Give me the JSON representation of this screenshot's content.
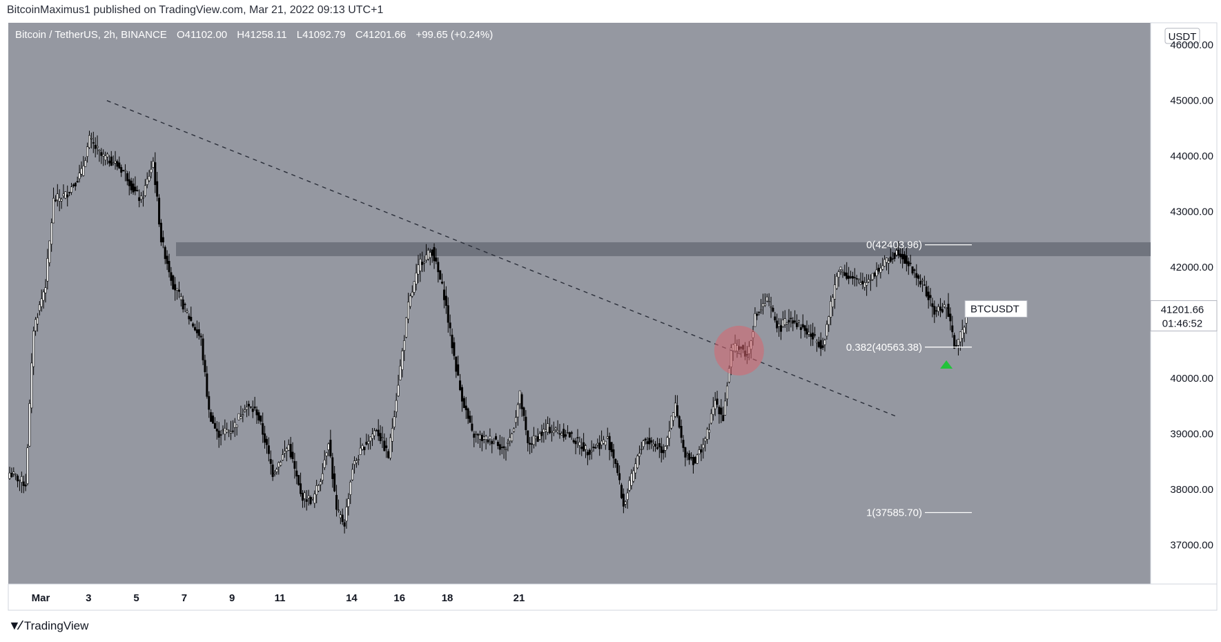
{
  "header": {
    "publisher_line": "BitcoinMaximus1 published on TradingView.com, Mar 21, 2022 09:13 UTC+1"
  },
  "legend": {
    "symbol": "Bitcoin / TetherUS, 2h, BINANCE",
    "o_label": "O",
    "o": "41102.00",
    "h_label": "H",
    "h": "41258.11",
    "l_label": "L",
    "l": "41092.79",
    "c_label": "C",
    "c": "41201.66",
    "change": "+99.65 (+0.24%)"
  },
  "price_axis": {
    "currency": "USDT",
    "ticks": [
      "46000.00",
      "45000.00",
      "44000.00",
      "43000.00",
      "42000.00",
      "41000.00",
      "40000.00",
      "39000.00",
      "38000.00",
      "37000.00"
    ]
  },
  "price_label": {
    "ticker": "BTCUSDT",
    "price": "41201.66",
    "countdown": "01:46:52"
  },
  "date_axis": {
    "ticks": [
      "Mar",
      "3",
      "5",
      "7",
      "9",
      "11",
      "14",
      "16",
      "18",
      "21"
    ]
  },
  "fib": {
    "level_0": "0(42403.96)",
    "level_0382": "0.382(40563.38)",
    "level_1": "1(37585.70)"
  },
  "footer": {
    "brand": "TradingView",
    "logo": "tradingview-logo-icon"
  },
  "colors": {
    "plot_bg": "#9598a1",
    "up": "#ffffff",
    "down": "#000000",
    "zone": "#6a6d78",
    "circle": "#d9666f",
    "arrow": "#22c33a"
  },
  "chart_data": {
    "type": "candlestick",
    "title": "Bitcoin / TetherUS, 2h, BINANCE",
    "xlabel": "",
    "ylabel": "",
    "ylim": [
      36300,
      46400
    ],
    "x_ticks": [
      "Mar",
      "3",
      "5",
      "7",
      "9",
      "11",
      "14",
      "16",
      "18",
      "21"
    ],
    "close_path": [
      [
        0,
        38300
      ],
      [
        8,
        38100
      ],
      [
        12,
        40900
      ],
      [
        18,
        41700
      ],
      [
        22,
        43200
      ],
      [
        28,
        43300
      ],
      [
        36,
        43700
      ],
      [
        40,
        44300
      ],
      [
        46,
        44000
      ],
      [
        52,
        43900
      ],
      [
        58,
        43700
      ],
      [
        62,
        43400
      ],
      [
        66,
        43200
      ],
      [
        72,
        43900
      ],
      [
        76,
        42500
      ],
      [
        82,
        41700
      ],
      [
        90,
        41100
      ],
      [
        96,
        40700
      ],
      [
        100,
        39400
      ],
      [
        104,
        39000
      ],
      [
        112,
        39100
      ],
      [
        118,
        39500
      ],
      [
        124,
        39400
      ],
      [
        128,
        38900
      ],
      [
        132,
        38300
      ],
      [
        140,
        38800
      ],
      [
        146,
        37900
      ],
      [
        152,
        37800
      ],
      [
        156,
        38200
      ],
      [
        160,
        38900
      ],
      [
        164,
        37600
      ],
      [
        168,
        37400
      ],
      [
        172,
        38400
      ],
      [
        178,
        38800
      ],
      [
        184,
        39100
      ],
      [
        190,
        38600
      ],
      [
        196,
        40200
      ],
      [
        200,
        41300
      ],
      [
        206,
        42100
      ],
      [
        212,
        42300
      ],
      [
        218,
        41500
      ],
      [
        222,
        40600
      ],
      [
        226,
        39800
      ],
      [
        232,
        39000
      ],
      [
        238,
        38900
      ],
      [
        244,
        38900
      ],
      [
        248,
        38700
      ],
      [
        252,
        39000
      ],
      [
        256,
        39700
      ],
      [
        260,
        38800
      ],
      [
        270,
        39100
      ],
      [
        280,
        39000
      ],
      [
        290,
        38700
      ],
      [
        300,
        38900
      ],
      [
        304,
        38500
      ],
      [
        308,
        37700
      ],
      [
        312,
        38200
      ],
      [
        318,
        38900
      ],
      [
        324,
        38800
      ],
      [
        328,
        38700
      ],
      [
        334,
        39500
      ],
      [
        338,
        38700
      ],
      [
        344,
        38500
      ],
      [
        350,
        39000
      ],
      [
        354,
        39600
      ],
      [
        358,
        39300
      ],
      [
        362,
        40500
      ],
      [
        366,
        40600
      ],
      [
        370,
        40400
      ],
      [
        374,
        41100
      ],
      [
        380,
        41400
      ],
      [
        386,
        40900
      ],
      [
        392,
        41100
      ],
      [
        398,
        40900
      ],
      [
        404,
        40700
      ],
      [
        408,
        40600
      ],
      [
        412,
        41300
      ],
      [
        416,
        42000
      ],
      [
        422,
        41800
      ],
      [
        428,
        41700
      ],
      [
        434,
        41900
      ],
      [
        440,
        42100
      ],
      [
        446,
        42300
      ],
      [
        452,
        42000
      ],
      [
        458,
        41700
      ],
      [
        464,
        41200
      ],
      [
        470,
        41300
      ],
      [
        474,
        40600
      ],
      [
        478,
        40800
      ],
      [
        480,
        41201.66
      ]
    ],
    "annotations": {
      "trendline": {
        "from": [
          28,
          45000
        ],
        "to": [
          446,
          39300
        ],
        "style": "dashed"
      },
      "resistance_zone": [
        42200,
        42450
      ],
      "fib_levels": [
        {
          "label": "0",
          "value": 42403.96
        },
        {
          "label": "0.382",
          "value": 40563.38
        },
        {
          "label": "1",
          "value": 37585.7
        }
      ],
      "breakout_circle": {
        "x": 366,
        "y": 40500
      },
      "support_arrow": {
        "x": 470,
        "y": 40250
      }
    }
  }
}
